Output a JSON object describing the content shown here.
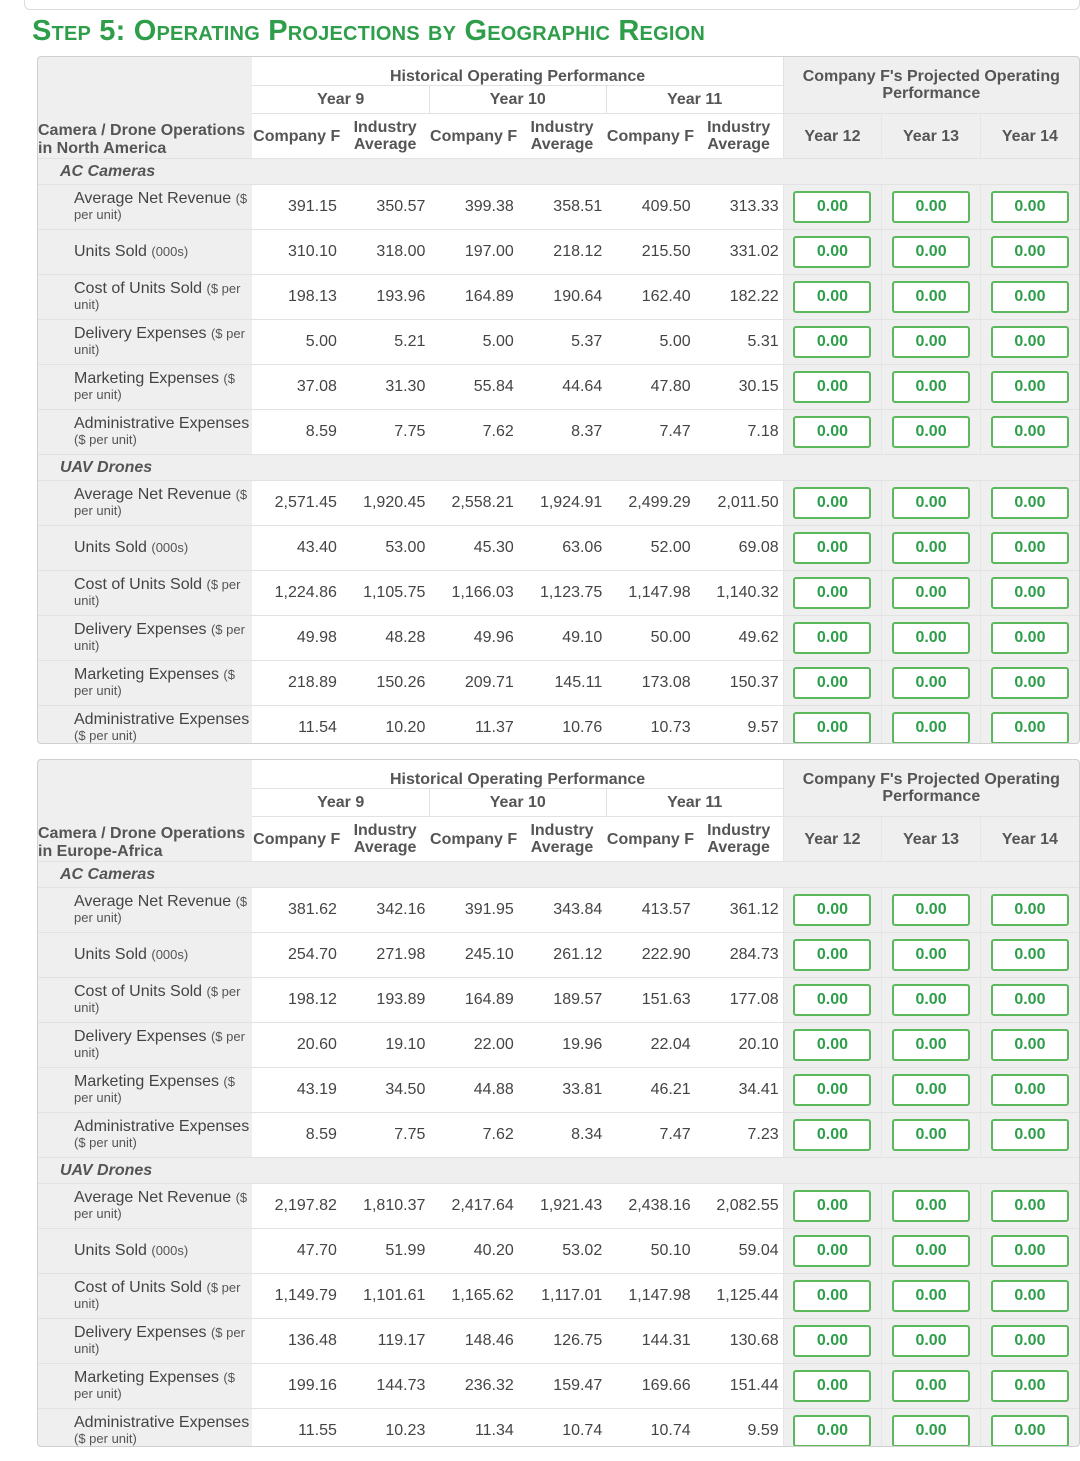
{
  "page_title": "Step 5: Operating Projections by Geographic Region",
  "header": {
    "historical_label": "Historical Operating Performance",
    "projected_label": "Company F's Projected Operating Performance",
    "hist_years": [
      "Year 9",
      "Year 10",
      "Year 11"
    ],
    "col_company": "Company F",
    "col_industry": "Industry Average",
    "proj_years": [
      "Year 12",
      "Year 13",
      "Year 14"
    ]
  },
  "accent_color": "#2e9e4a",
  "regions": [
    {
      "label": "Camera / Drone Operations in North America",
      "groups": [
        {
          "name": "AC Cameras",
          "rows": [
            {
              "label": "Average Net Revenue",
              "unit": "($ per unit)",
              "values": [
                "391.15",
                "350.57",
                "399.38",
                "358.51",
                "409.50",
                "313.33"
              ],
              "projected": [
                "0.00",
                "0.00",
                "0.00"
              ]
            },
            {
              "label": "Units Sold",
              "unit": "(000s)",
              "values": [
                "310.10",
                "318.00",
                "197.00",
                "218.12",
                "215.50",
                "331.02"
              ],
              "projected": [
                "0.00",
                "0.00",
                "0.00"
              ]
            },
            {
              "label": "Cost of Units Sold",
              "unit": "($ per unit)",
              "values": [
                "198.13",
                "193.96",
                "164.89",
                "190.64",
                "162.40",
                "182.22"
              ],
              "projected": [
                "0.00",
                "0.00",
                "0.00"
              ]
            },
            {
              "label": "Delivery Expenses",
              "unit": "($ per unit)",
              "values": [
                "5.00",
                "5.21",
                "5.00",
                "5.37",
                "5.00",
                "5.31"
              ],
              "projected": [
                "0.00",
                "0.00",
                "0.00"
              ]
            },
            {
              "label": "Marketing Expenses",
              "unit": "($ per unit)",
              "values": [
                "37.08",
                "31.30",
                "55.84",
                "44.64",
                "47.80",
                "30.15"
              ],
              "projected": [
                "0.00",
                "0.00",
                "0.00"
              ]
            },
            {
              "label": "Administrative Expenses",
              "unit": "($ per unit)",
              "values": [
                "8.59",
                "7.75",
                "7.62",
                "8.37",
                "7.47",
                "7.18"
              ],
              "projected": [
                "0.00",
                "0.00",
                "0.00"
              ]
            }
          ]
        },
        {
          "name": "UAV Drones",
          "rows": [
            {
              "label": "Average Net Revenue",
              "unit": "($ per unit)",
              "values": [
                "2,571.45",
                "1,920.45",
                "2,558.21",
                "1,924.91",
                "2,499.29",
                "2,011.50"
              ],
              "projected": [
                "0.00",
                "0.00",
                "0.00"
              ]
            },
            {
              "label": "Units Sold",
              "unit": "(000s)",
              "values": [
                "43.40",
                "53.00",
                "45.30",
                "63.06",
                "52.00",
                "69.08"
              ],
              "projected": [
                "0.00",
                "0.00",
                "0.00"
              ]
            },
            {
              "label": "Cost of Units Sold",
              "unit": "($ per unit)",
              "values": [
                "1,224.86",
                "1,105.75",
                "1,166.03",
                "1,123.75",
                "1,147.98",
                "1,140.32"
              ],
              "projected": [
                "0.00",
                "0.00",
                "0.00"
              ]
            },
            {
              "label": "Delivery Expenses",
              "unit": "($ per unit)",
              "values": [
                "49.98",
                "48.28",
                "49.96",
                "49.10",
                "50.00",
                "49.62"
              ],
              "projected": [
                "0.00",
                "0.00",
                "0.00"
              ]
            },
            {
              "label": "Marketing Expenses",
              "unit": "($ per unit)",
              "values": [
                "218.89",
                "150.26",
                "209.71",
                "145.11",
                "173.08",
                "150.37"
              ],
              "projected": [
                "0.00",
                "0.00",
                "0.00"
              ]
            },
            {
              "label": "Administrative Expenses",
              "unit": "($ per unit)",
              "values": [
                "11.54",
                "10.20",
                "11.37",
                "10.76",
                "10.73",
                "9.57"
              ],
              "projected": [
                "0.00",
                "0.00",
                "0.00"
              ]
            }
          ]
        }
      ]
    },
    {
      "label": "Camera / Drone Operations in Europe-Africa",
      "groups": [
        {
          "name": "AC Cameras",
          "rows": [
            {
              "label": "Average Net Revenue",
              "unit": "($ per unit)",
              "values": [
                "381.62",
                "342.16",
                "391.95",
                "343.84",
                "413.57",
                "361.12"
              ],
              "projected": [
                "0.00",
                "0.00",
                "0.00"
              ]
            },
            {
              "label": "Units Sold",
              "unit": "(000s)",
              "values": [
                "254.70",
                "271.98",
                "245.10",
                "261.12",
                "222.90",
                "284.73"
              ],
              "projected": [
                "0.00",
                "0.00",
                "0.00"
              ]
            },
            {
              "label": "Cost of Units Sold",
              "unit": "($ per unit)",
              "values": [
                "198.12",
                "193.89",
                "164.89",
                "189.57",
                "151.63",
                "177.08"
              ],
              "projected": [
                "0.00",
                "0.00",
                "0.00"
              ]
            },
            {
              "label": "Delivery Expenses",
              "unit": "($ per unit)",
              "values": [
                "20.60",
                "19.10",
                "22.00",
                "19.96",
                "22.04",
                "20.10"
              ],
              "projected": [
                "0.00",
                "0.00",
                "0.00"
              ]
            },
            {
              "label": "Marketing Expenses",
              "unit": "($ per unit)",
              "values": [
                "43.19",
                "34.50",
                "44.88",
                "33.81",
                "46.21",
                "34.41"
              ],
              "projected": [
                "0.00",
                "0.00",
                "0.00"
              ]
            },
            {
              "label": "Administrative Expenses",
              "unit": "($ per unit)",
              "values": [
                "8.59",
                "7.75",
                "7.62",
                "8.34",
                "7.47",
                "7.23"
              ],
              "projected": [
                "0.00",
                "0.00",
                "0.00"
              ]
            }
          ]
        },
        {
          "name": "UAV Drones",
          "rows": [
            {
              "label": "Average Net Revenue",
              "unit": "($ per unit)",
              "values": [
                "2,197.82",
                "1,810.37",
                "2,417.64",
                "1,921.43",
                "2,438.16",
                "2,082.55"
              ],
              "projected": [
                "0.00",
                "0.00",
                "0.00"
              ]
            },
            {
              "label": "Units Sold",
              "unit": "(000s)",
              "values": [
                "47.70",
                "51.99",
                "40.20",
                "53.02",
                "50.10",
                "59.04"
              ],
              "projected": [
                "0.00",
                "0.00",
                "0.00"
              ]
            },
            {
              "label": "Cost of Units Sold",
              "unit": "($ per unit)",
              "values": [
                "1,149.79",
                "1,101.61",
                "1,165.62",
                "1,117.01",
                "1,147.98",
                "1,125.44"
              ],
              "projected": [
                "0.00",
                "0.00",
                "0.00"
              ]
            },
            {
              "label": "Delivery Expenses",
              "unit": "($ per unit)",
              "values": [
                "136.48",
                "119.17",
                "148.46",
                "126.75",
                "144.31",
                "130.68"
              ],
              "projected": [
                "0.00",
                "0.00",
                "0.00"
              ]
            },
            {
              "label": "Marketing Expenses",
              "unit": "($ per unit)",
              "values": [
                "199.16",
                "144.73",
                "236.32",
                "159.47",
                "169.66",
                "151.44"
              ],
              "projected": [
                "0.00",
                "0.00",
                "0.00"
              ]
            },
            {
              "label": "Administrative Expenses",
              "unit": "($ per unit)",
              "values": [
                "11.55",
                "10.23",
                "11.34",
                "10.74",
                "10.74",
                "9.59"
              ],
              "projected": [
                "0.00",
                "0.00",
                "0.00"
              ]
            }
          ]
        }
      ]
    }
  ]
}
